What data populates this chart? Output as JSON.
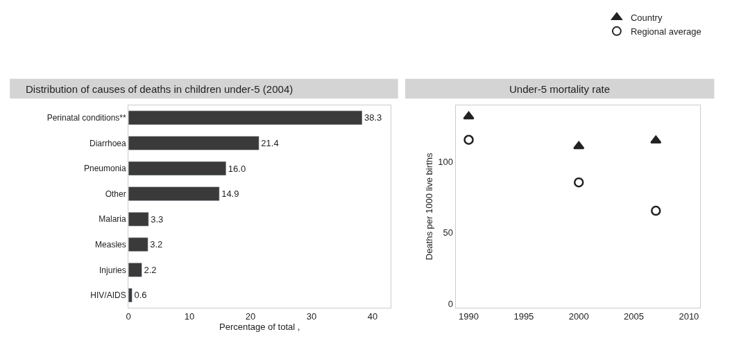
{
  "chart_data": [
    {
      "type": "bar",
      "orientation": "horizontal",
      "title": "Distribution of causes of deaths in children under-5 (2004)",
      "xlabel": "Percentage of total ,",
      "categories": [
        "Perinatal conditions**",
        "Diarrhoea",
        "Pneumonia",
        "Other",
        "Malaria",
        "Measles",
        "Injuries",
        "HIV/AIDS"
      ],
      "values": [
        38.3,
        21.4,
        16.0,
        14.9,
        3.3,
        3.2,
        2.2,
        0.6
      ],
      "value_labels": [
        "38.3",
        "21.4",
        "16.0",
        "14.9",
        "3.3",
        "3.2",
        "2.2",
        "0.6"
      ],
      "color": "#3a3a3a",
      "xlim": [
        0,
        43
      ],
      "xticks": [
        0,
        10,
        20,
        30,
        40
      ]
    },
    {
      "type": "scatter",
      "title": "Under-5 mortality rate",
      "ylabel": "Deaths per 1000 live births",
      "x": [
        1990,
        2000,
        2007
      ],
      "series": [
        {
          "name": "Country",
          "color": "#222222",
          "marker": "triangle",
          "values": [
            132,
            111,
            115
          ]
        },
        {
          "name": "Regional average",
          "color": "#222222",
          "marker": "circle-open",
          "values": [
            115.5,
            85.5,
            65.5
          ]
        }
      ],
      "xlim": [
        1988.8,
        2011
      ],
      "xticks": [
        1990,
        1995,
        2000,
        2005,
        2010
      ],
      "ylim": [
        -3,
        140
      ],
      "yticks": [
        0,
        50,
        100
      ],
      "legend": "top right"
    }
  ]
}
